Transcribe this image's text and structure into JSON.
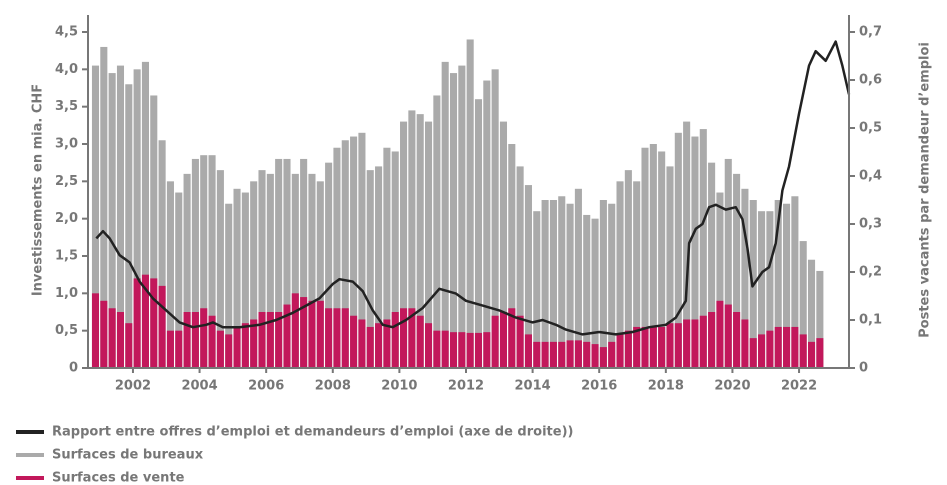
{
  "chart_data": {
    "type": "bar",
    "y_label": "Investissements en mia. CHF",
    "y2_label": "Postes vacants par demandeur d’emploi",
    "xlim": [
      2000.65,
      2023.5
    ],
    "xticks": [
      2002,
      2004,
      2006,
      2008,
      2010,
      2012,
      2014,
      2016,
      2018,
      2020,
      2022
    ],
    "ylim": [
      0,
      4.5
    ],
    "yticks": [
      0,
      {
        "value": 0.5,
        "label": "0,5"
      },
      {
        "value": 1,
        "label": "1,0"
      },
      {
        "value": 1.5,
        "label": "1,5"
      },
      {
        "value": 2,
        "label": "2,0"
      },
      {
        "value": 2.5,
        "label": "2,5"
      },
      {
        "value": 3,
        "label": "3,0"
      },
      {
        "value": 3.5,
        "label": "3,5"
      },
      {
        "value": 4,
        "label": "4,0"
      },
      {
        "value": 4.5,
        "label": "4,5"
      }
    ],
    "y2lim": [
      0,
      0.7
    ],
    "y2ticks": [
      0,
      {
        "value": 0.1,
        "label": "0,1"
      },
      {
        "value": 0.2,
        "label": "0,2"
      },
      {
        "value": 0.3,
        "label": "0,3"
      },
      {
        "value": 0.4,
        "label": "0,4"
      },
      {
        "value": 0.5,
        "label": "0,5"
      },
      {
        "value": 0.6,
        "label": "0,6"
      },
      {
        "value": 0.7,
        "label": "0,7"
      }
    ],
    "x": [
      2000.875,
      2001.125,
      2001.375,
      2001.625,
      2001.875,
      2002.125,
      2002.375,
      2002.625,
      2002.875,
      2003.125,
      2003.375,
      2003.625,
      2003.875,
      2004.125,
      2004.375,
      2004.625,
      2004.875,
      2005.125,
      2005.375,
      2005.625,
      2005.875,
      2006.125,
      2006.375,
      2006.625,
      2006.875,
      2007.125,
      2007.375,
      2007.625,
      2007.875,
      2008.125,
      2008.375,
      2008.625,
      2008.875,
      2009.125,
      2009.375,
      2009.625,
      2009.875,
      2010.125,
      2010.375,
      2010.625,
      2010.875,
      2011.125,
      2011.375,
      2011.625,
      2011.875,
      2012.125,
      2012.375,
      2012.625,
      2012.875,
      2013.125,
      2013.375,
      2013.625,
      2013.875,
      2014.125,
      2014.375,
      2014.625,
      2014.875,
      2015.125,
      2015.375,
      2015.625,
      2015.875,
      2016.125,
      2016.375,
      2016.625,
      2016.875,
      2017.125,
      2017.375,
      2017.625,
      2017.875,
      2018.125,
      2018.375,
      2018.625,
      2018.875,
      2019.125,
      2019.375,
      2019.625,
      2019.875,
      2020.125,
      2020.375,
      2020.625,
      2020.875,
      2021.125,
      2021.375,
      2021.625,
      2021.875,
      2022.125,
      2022.375,
      2022.625
    ],
    "series": [
      {
        "name": "Rapport entre offres d’emploi et demandeurs d’emploi (axe de droite))",
        "type": "line",
        "axis": "y2",
        "color": "#222222",
        "x": [
          2000.9,
          2001.1,
          2001.3,
          2001.6,
          2001.9,
          2002.2,
          2002.6,
          2003.0,
          2003.4,
          2003.8,
          2004.2,
          2004.4,
          2004.7,
          2005.2,
          2005.8,
          2006.3,
          2006.8,
          2007.2,
          2007.6,
          2008.0,
          2008.2,
          2008.6,
          2008.9,
          2009.2,
          2009.5,
          2009.8,
          2010.2,
          2010.7,
          2011.2,
          2011.7,
          2012.0,
          2012.5,
          2013.0,
          2013.5,
          2014.0,
          2014.3,
          2014.7,
          2015.0,
          2015.5,
          2016.0,
          2016.5,
          2017.0,
          2017.5,
          2018.0,
          2018.3,
          2018.6,
          2018.7,
          2018.9,
          2019.1,
          2019.3,
          2019.5,
          2019.8,
          2020.1,
          2020.3,
          2020.45,
          2020.6,
          2020.9,
          2021.1,
          2021.3,
          2021.5,
          2021.7,
          2022.0,
          2022.3,
          2022.5,
          2022.8,
          2023.1,
          2023.3,
          2023.5
        ],
        "values": [
          0.27,
          0.285,
          0.27,
          0.235,
          0.22,
          0.18,
          0.145,
          0.12,
          0.095,
          0.085,
          0.09,
          0.095,
          0.085,
          0.085,
          0.09,
          0.1,
          0.115,
          0.13,
          0.145,
          0.175,
          0.185,
          0.18,
          0.16,
          0.12,
          0.09,
          0.085,
          0.1,
          0.125,
          0.165,
          0.155,
          0.14,
          0.13,
          0.12,
          0.105,
          0.095,
          0.1,
          0.09,
          0.08,
          0.07,
          0.075,
          0.07,
          0.075,
          0.085,
          0.09,
          0.105,
          0.14,
          0.26,
          0.29,
          0.3,
          0.335,
          0.34,
          0.33,
          0.335,
          0.31,
          0.25,
          0.17,
          0.2,
          0.21,
          0.26,
          0.37,
          0.42,
          0.53,
          0.63,
          0.66,
          0.64,
          0.68,
          0.63,
          0.57
        ]
      },
      {
        "name": "Surfaces de bureaux",
        "color": "#aaaaaa",
        "values": [
          4.05,
          4.3,
          3.95,
          4.05,
          3.8,
          4.0,
          4.1,
          3.65,
          3.05,
          2.5,
          2.35,
          2.6,
          2.8,
          2.85,
          2.85,
          2.65,
          2.2,
          2.4,
          2.35,
          2.5,
          2.65,
          2.6,
          2.8,
          2.8,
          2.6,
          2.8,
          2.6,
          2.5,
          2.75,
          2.95,
          3.05,
          3.1,
          3.15,
          2.65,
          2.7,
          2.95,
          2.9,
          3.3,
          3.45,
          3.4,
          3.3,
          3.65,
          4.1,
          3.95,
          4.05,
          4.4,
          3.6,
          3.85,
          4.0,
          3.3,
          3.0,
          2.7,
          2.45,
          2.1,
          2.25,
          2.25,
          2.3,
          2.2,
          2.4,
          2.05,
          2.0,
          2.25,
          2.2,
          2.5,
          2.65,
          2.5,
          2.95,
          3.0,
          2.9,
          2.7,
          3.15,
          3.3,
          3.1,
          3.2,
          2.75,
          2.35,
          2.8,
          2.6,
          2.4,
          2.25,
          2.1,
          2.1,
          2.25,
          2.2,
          2.3,
          1.7,
          1.45,
          1.3
        ]
      },
      {
        "name": "Surfaces de vente",
        "color": "#c2185b",
        "values": [
          1.0,
          0.9,
          0.8,
          0.75,
          0.6,
          1.2,
          1.25,
          1.2,
          1.1,
          0.5,
          0.5,
          0.75,
          0.75,
          0.8,
          0.7,
          0.5,
          0.45,
          0.55,
          0.6,
          0.65,
          0.75,
          0.75,
          0.75,
          0.85,
          1.0,
          0.95,
          0.9,
          0.9,
          0.8,
          0.8,
          0.8,
          0.7,
          0.65,
          0.55,
          0.6,
          0.65,
          0.75,
          0.8,
          0.8,
          0.7,
          0.6,
          0.5,
          0.5,
          0.48,
          0.48,
          0.47,
          0.47,
          0.48,
          0.7,
          0.75,
          0.8,
          0.7,
          0.45,
          0.35,
          0.35,
          0.35,
          0.35,
          0.37,
          0.37,
          0.35,
          0.32,
          0.28,
          0.35,
          0.45,
          0.5,
          0.55,
          0.55,
          0.55,
          0.55,
          0.6,
          0.6,
          0.65,
          0.65,
          0.7,
          0.75,
          0.9,
          0.85,
          0.75,
          0.65,
          0.4,
          0.45,
          0.5,
          0.55,
          0.55,
          0.55,
          0.45,
          0.35,
          0.4
        ]
      }
    ]
  }
}
